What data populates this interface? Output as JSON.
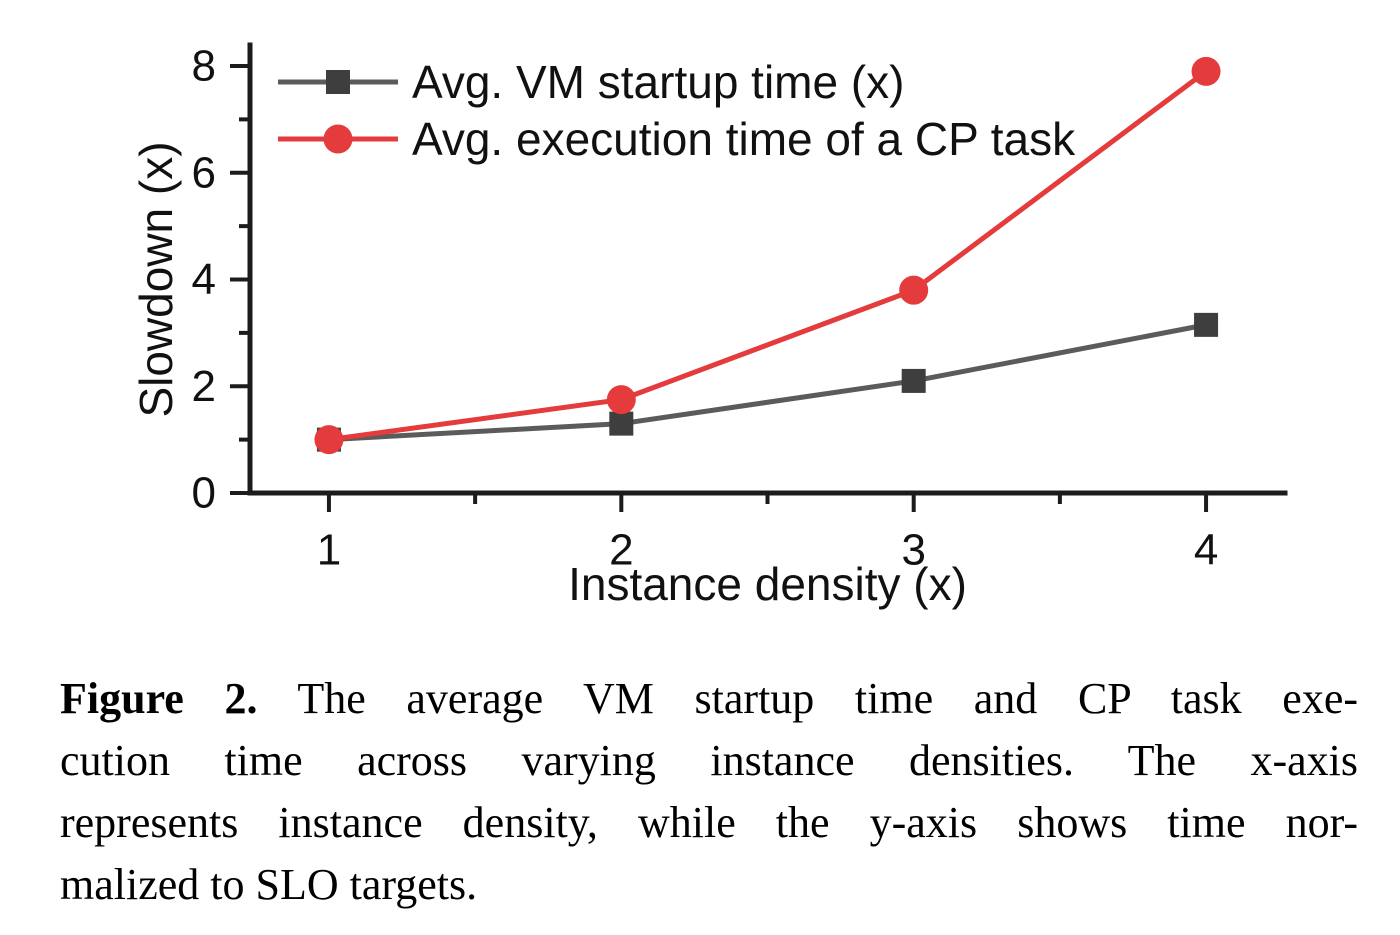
{
  "chart_data": {
    "type": "line",
    "x": [
      1,
      2,
      3,
      4
    ],
    "series": [
      {
        "name": "Avg. VM startup time (x)",
        "values": [
          1.0,
          1.3,
          2.1,
          3.15
        ],
        "color": "#5b5b5b",
        "marker_color": "#3e3e3e",
        "marker": "square"
      },
      {
        "name": "Avg. execution time of a CP task",
        "values": [
          1.0,
          1.75,
          3.8,
          7.9
        ],
        "color": "#e43b3d",
        "marker_color": "#e43b3d",
        "marker": "circle"
      }
    ],
    "title": "",
    "xlabel": "Instance density (x)",
    "ylabel": "Slowdown (x)",
    "xlim": [
      1,
      4
    ],
    "ylim": [
      0,
      8
    ],
    "x_ticks": [
      1,
      2,
      3,
      4
    ],
    "x_minor_ticks": [
      1.5,
      2.5,
      3.5
    ],
    "y_ticks": [
      0,
      2,
      4,
      6,
      8
    ],
    "y_minor_ticks": [
      1,
      3,
      5,
      7
    ],
    "grid": false,
    "legend_position": "top-left",
    "axis_color": "#1c1c1c"
  },
  "caption": {
    "label": "Figure 2.",
    "lines": [
      "The average VM startup time and CP task exe-",
      "cution time across varying instance densities. The x-axis",
      "represents instance density, while the y-axis shows time nor-",
      "malized to SLO targets."
    ]
  }
}
